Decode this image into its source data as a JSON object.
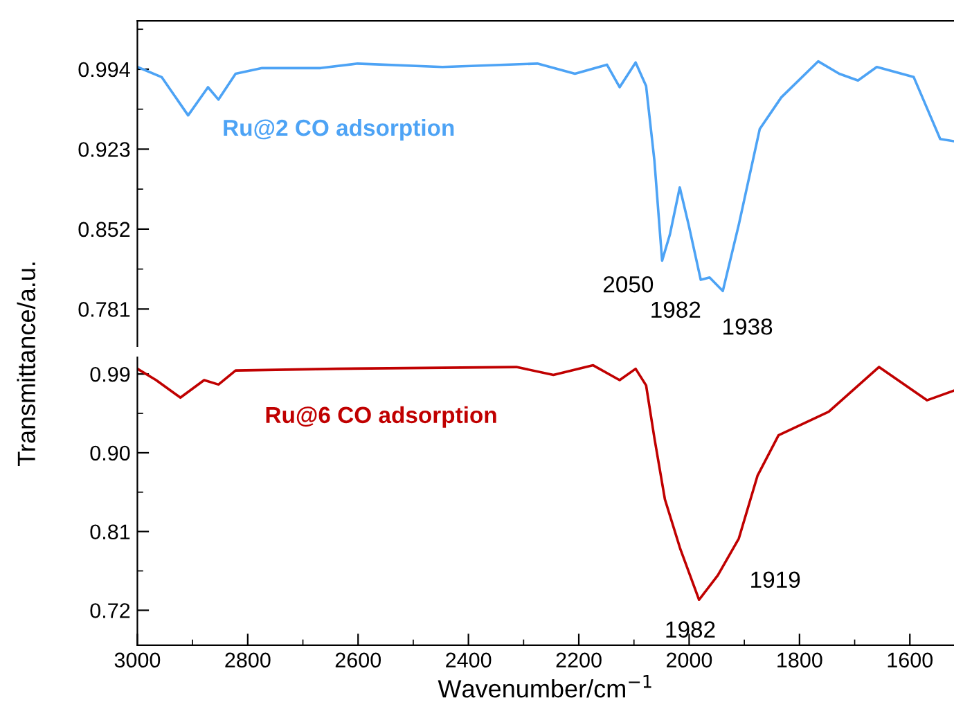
{
  "chart_data": [
    {
      "type": "line",
      "ylabel": "Transmittance/a.u.",
      "xlim": [
        3000,
        1520
      ],
      "xticks": [
        3000,
        2800,
        2600,
        2400,
        2200,
        2000,
        1800,
        1600
      ],
      "ylim": [
        0.748,
        1.037
      ],
      "yticks": [
        0.994,
        0.923,
        0.852,
        0.781
      ],
      "tick_labels": "y",
      "grid": false,
      "legend": false,
      "marker": "none",
      "line_style": "solid",
      "series": [
        {
          "name": "Ru@2 CO adsorption",
          "color": "#4da3f5",
          "x": [
            3000,
            2956,
            2908,
            2872,
            2853,
            2822,
            2774,
            2668,
            2601,
            2447,
            2275,
            2207,
            2149,
            2126,
            2097,
            2078,
            2063,
            2049,
            2035,
            2017,
            2001,
            1979,
            1963,
            1939,
            1910,
            1872,
            1833,
            1766,
            1728,
            1694,
            1660,
            1593,
            1545,
            1520
          ],
          "values": [
            0.996,
            0.987,
            0.953,
            0.978,
            0.967,
            0.99,
            0.995,
            0.995,
            0.999,
            0.996,
            0.999,
            0.99,
            0.998,
            0.978,
            1.0,
            0.979,
            0.913,
            0.824,
            0.847,
            0.889,
            0.856,
            0.807,
            0.809,
            0.797,
            0.856,
            0.941,
            0.969,
            1.001,
            0.99,
            0.984,
            0.996,
            0.987,
            0.932,
            0.93
          ]
        }
      ],
      "annotations": [
        "2050",
        "1982",
        "1938"
      ]
    },
    {
      "type": "line",
      "xlabel": "Wavenumber/cm$^{−1}$",
      "xlim": [
        3000,
        1520
      ],
      "xticks": [
        3000,
        2800,
        2600,
        2400,
        2200,
        2000,
        1800,
        1600
      ],
      "ylim": [
        0.68,
        1.009
      ],
      "yticks": [
        0.99,
        {
          "value": 0.9,
          "label": "0.90"
        },
        0.81,
        0.72
      ],
      "grid": false,
      "legend": false,
      "marker": "none",
      "line_style": "solid",
      "series": [
        {
          "name": "Ru@6 CO adsorption",
          "color": "#c00000",
          "x": [
            3000,
            2966,
            2922,
            2879,
            2853,
            2822,
            2639,
            2313,
            2246,
            2174,
            2126,
            2097,
            2078,
            2063,
            2044,
            2016,
            1982,
            1948,
            1910,
            1876,
            1838,
            1747,
            1656,
            1569,
            1520
          ],
          "values": [
            0.996,
            0.983,
            0.963,
            0.983,
            0.978,
            0.994,
            0.996,
            0.998,
            0.989,
            1.0,
            0.983,
            0.996,
            0.977,
            0.917,
            0.847,
            0.79,
            0.732,
            0.76,
            0.802,
            0.874,
            0.92,
            0.947,
            0.998,
            0.96,
            0.971
          ]
        }
      ],
      "annotations": [
        "1919",
        "1982"
      ]
    }
  ]
}
